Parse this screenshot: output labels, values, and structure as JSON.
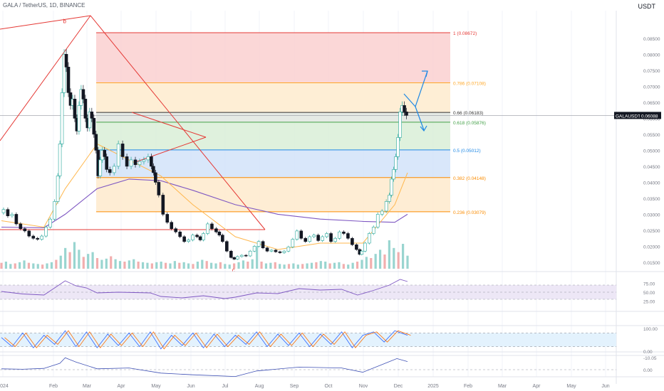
{
  "header": {
    "symbol_line": "GALA / TetherUS, 1D, BINANCE",
    "currency": "USDT"
  },
  "colors": {
    "bg": "#ffffff",
    "up": "#26a69a",
    "down": "#131722",
    "grid": "#f0f3fa",
    "pattern_line": "#e53935",
    "ma_purple": "#7e57c2",
    "ma_orange": "#ffb74d",
    "ma_yellow": "#fdd835",
    "arrow": "#1e88e5",
    "rsi_band": "#ede7f6",
    "stoch_band": "#e3f2fd"
  },
  "chart_data": {
    "type": "candlestick",
    "title": "GALA / TetherUS, 1D, BINANCE",
    "ylim": [
      0.013,
      0.0925
    ],
    "x_ticks": [
      "2024",
      "Feb",
      "Mar",
      "Apr",
      "May",
      "Jun",
      "Jul",
      "Aug",
      "Sep",
      "Oct",
      "Nov",
      "Dec",
      "2025",
      "Feb",
      "Mar",
      "Apr",
      "May",
      "Jun"
    ],
    "y_ticks": [
      "0.08500",
      "0.08000",
      "0.07500",
      "0.07000",
      "0.06500",
      "0.06000",
      "0.05500",
      "0.05000",
      "0.04500",
      "0.04000",
      "0.03500",
      "0.03000",
      "0.02500",
      "0.02000",
      "0.01500"
    ],
    "last_price": {
      "symbol": "GALAUSDT",
      "value": "0.06088",
      "y": 0.06088
    },
    "fib_levels": [
      {
        "label": "1 (0.08672)",
        "value": 0.08672,
        "color": "#e53935",
        "fill": "#fbd3d3"
      },
      {
        "label": "0.786 (0.07108)",
        "value": 0.07108,
        "color": "#ffa726",
        "fill": "#feecd0"
      },
      {
        "label": "0.66 (0.06183)",
        "value": 0.06183,
        "color": "#333333",
        "fill": "#e2e8e2"
      },
      {
        "label": "0.618 (0.05876)",
        "value": 0.05876,
        "color": "#43a047",
        "fill": "#dcefd9"
      },
      {
        "label": "0.5 (0.05012)",
        "value": 0.05012,
        "color": "#1e88e5",
        "fill": "#d5e4fa"
      },
      {
        "label": "0.382 (0.04148)",
        "value": 0.04148,
        "color": "#fb8c00",
        "fill": "#feebcf"
      },
      {
        "label": "0.236 (0.03079)",
        "value": 0.03079,
        "color": "#fb8c00",
        "fill": "#ffffff"
      }
    ],
    "pattern_labels": [
      {
        "text": "b",
        "x": 60,
        "y": 0.0893
      },
      {
        "text": "c",
        "x": 219,
        "y": 0.0138
      }
    ],
    "price_path": [
      [
        0,
        0.0305
      ],
      [
        4,
        0.0315
      ],
      [
        8,
        0.0295
      ],
      [
        12,
        0.03
      ],
      [
        16,
        0.027
      ],
      [
        20,
        0.0255
      ],
      [
        24,
        0.0248
      ],
      [
        28,
        0.0232
      ],
      [
        32,
        0.0225
      ],
      [
        36,
        0.0222
      ],
      [
        40,
        0.0232
      ],
      [
        44,
        0.026
      ],
      [
        48,
        0.0285
      ],
      [
        52,
        0.034
      ],
      [
        54,
        0.042
      ],
      [
        56,
        0.052
      ],
      [
        58,
        0.068
      ],
      [
        60,
        0.08
      ],
      [
        62,
        0.076
      ],
      [
        64,
        0.068
      ],
      [
        66,
        0.064
      ],
      [
        68,
        0.066
      ],
      [
        70,
        0.06
      ],
      [
        72,
        0.056
      ],
      [
        74,
        0.064
      ],
      [
        76,
        0.069
      ],
      [
        78,
        0.066
      ],
      [
        80,
        0.06
      ],
      [
        82,
        0.057
      ],
      [
        84,
        0.062
      ],
      [
        86,
        0.06
      ],
      [
        88,
        0.055
      ],
      [
        90,
        0.05
      ],
      [
        92,
        0.042
      ],
      [
        94,
        0.047
      ],
      [
        96,
        0.05
      ],
      [
        98,
        0.048
      ],
      [
        100,
        0.044
      ],
      [
        104,
        0.043
      ],
      [
        108,
        0.045
      ],
      [
        112,
        0.052
      ],
      [
        116,
        0.048
      ],
      [
        120,
        0.045
      ],
      [
        124,
        0.047
      ],
      [
        128,
        0.0455
      ],
      [
        132,
        0.0465
      ],
      [
        136,
        0.047
      ],
      [
        140,
        0.048
      ],
      [
        142,
        0.045
      ],
      [
        144,
        0.043
      ],
      [
        146,
        0.04
      ],
      [
        150,
        0.036
      ],
      [
        154,
        0.03
      ],
      [
        158,
        0.0275
      ],
      [
        162,
        0.0255
      ],
      [
        166,
        0.0245
      ],
      [
        170,
        0.023
      ],
      [
        174,
        0.0215
      ],
      [
        178,
        0.022
      ],
      [
        182,
        0.0235
      ],
      [
        186,
        0.023
      ],
      [
        188,
        0.022
      ],
      [
        192,
        0.024
      ],
      [
        196,
        0.027
      ],
      [
        200,
        0.0255
      ],
      [
        204,
        0.0245
      ],
      [
        206,
        0.0235
      ],
      [
        210,
        0.0215
      ],
      [
        214,
        0.0185
      ],
      [
        218,
        0.0165
      ],
      [
        220,
        0.016
      ],
      [
        224,
        0.0168
      ],
      [
        228,
        0.0172
      ],
      [
        232,
        0.017
      ],
      [
        236,
        0.0185
      ],
      [
        240,
        0.02
      ],
      [
        244,
        0.0215
      ],
      [
        248,
        0.0195
      ],
      [
        252,
        0.0185
      ],
      [
        256,
        0.0188
      ],
      [
        260,
        0.0183
      ],
      [
        264,
        0.018
      ],
      [
        268,
        0.0185
      ],
      [
        272,
        0.0198
      ],
      [
        276,
        0.0222
      ],
      [
        280,
        0.0248
      ],
      [
        284,
        0.0225
      ],
      [
        288,
        0.0215
      ],
      [
        292,
        0.023
      ],
      [
        296,
        0.0235
      ],
      [
        300,
        0.0218
      ],
      [
        304,
        0.023
      ],
      [
        308,
        0.024
      ],
      [
        312,
        0.0215
      ],
      [
        316,
        0.0225
      ],
      [
        320,
        0.0245
      ],
      [
        324,
        0.024
      ],
      [
        328,
        0.0225
      ],
      [
        332,
        0.0205
      ],
      [
        336,
        0.019
      ],
      [
        338,
        0.0175
      ],
      [
        340,
        0.0185
      ],
      [
        344,
        0.021
      ],
      [
        348,
        0.024
      ],
      [
        352,
        0.026
      ],
      [
        356,
        0.03
      ],
      [
        360,
        0.031
      ],
      [
        364,
        0.034
      ],
      [
        366,
        0.036
      ],
      [
        368,
        0.041
      ],
      [
        370,
        0.044
      ],
      [
        372,
        0.048
      ],
      [
        374,
        0.054
      ],
      [
        376,
        0.062
      ],
      [
        378,
        0.064
      ],
      [
        380,
        0.062
      ],
      [
        382,
        0.0609
      ]
    ],
    "ma_purple": [
      [
        0,
        0.026
      ],
      [
        40,
        0.0258
      ],
      [
        60,
        0.03
      ],
      [
        90,
        0.038
      ],
      [
        120,
        0.041
      ],
      [
        150,
        0.0405
      ],
      [
        180,
        0.0375
      ],
      [
        220,
        0.033
      ],
      [
        260,
        0.03
      ],
      [
        300,
        0.0285
      ],
      [
        340,
        0.0278
      ],
      [
        370,
        0.0275
      ],
      [
        382,
        0.03
      ]
    ],
    "ma_orange": [
      [
        0,
        0.028
      ],
      [
        40,
        0.026
      ],
      [
        60,
        0.038
      ],
      [
        90,
        0.052
      ],
      [
        120,
        0.047
      ],
      [
        150,
        0.042
      ],
      [
        180,
        0.033
      ],
      [
        220,
        0.023
      ],
      [
        260,
        0.019
      ],
      [
        300,
        0.021
      ],
      [
        340,
        0.021
      ],
      [
        370,
        0.033
      ],
      [
        382,
        0.043
      ]
    ],
    "volume": [
      1,
      1.2,
      0.8,
      0.9,
      1.1,
      1.4,
      1,
      0.9,
      0.8,
      0.7,
      0.9,
      1.1,
      1.5,
      2.2,
      3.5,
      2.8,
      4.5,
      3.2,
      2,
      2.5,
      2.8,
      1.8,
      1.5,
      1.7,
      2.1,
      1.6,
      1.3,
      1.2,
      1.4,
      1.6,
      1.2,
      1.1,
      1,
      0.9,
      1.1,
      1.2,
      1,
      0.9,
      1.3,
      1,
      1.1,
      0.9,
      0.8,
      1.2,
      1.5,
      1.3,
      1,
      0.9,
      1.1,
      0.8,
      0.7,
      0.9,
      1.1,
      1.4,
      1.2,
      1.6,
      3.8,
      1.2,
      0.9,
      1,
      1.1,
      0.8,
      0.7,
      0.8,
      0.9,
      0.7,
      0.8,
      0.9,
      1,
      1.1,
      1.3,
      1.2,
      0.9,
      1,
      1.1,
      0.8,
      0.7,
      1,
      1.2,
      1.5,
      2,
      1.8,
      2.5,
      3.2,
      2.4,
      4.8,
      3.5,
      2.8,
      4.2,
      2.2
    ],
    "rsi_ticks": [
      "75.00",
      "50.00",
      "25.00"
    ],
    "stoch_ticks": [
      "100.00",
      "0.00"
    ],
    "osc3_ticks": [
      "-10.05",
      "0.00"
    ],
    "rsi": [
      [
        0,
        52
      ],
      [
        20,
        45
      ],
      [
        40,
        42
      ],
      [
        55,
        72
      ],
      [
        60,
        82
      ],
      [
        70,
        68
      ],
      [
        80,
        62
      ],
      [
        90,
        48
      ],
      [
        110,
        50
      ],
      [
        140,
        48
      ],
      [
        150,
        38
      ],
      [
        170,
        34
      ],
      [
        190,
        40
      ],
      [
        210,
        32
      ],
      [
        220,
        36
      ],
      [
        240,
        48
      ],
      [
        260,
        46
      ],
      [
        280,
        60
      ],
      [
        300,
        56
      ],
      [
        320,
        58
      ],
      [
        335,
        42
      ],
      [
        350,
        55
      ],
      [
        365,
        70
      ],
      [
        375,
        86
      ],
      [
        382,
        80
      ]
    ],
    "stoch": [
      [
        0,
        60
      ],
      [
        10,
        20
      ],
      [
        20,
        80
      ],
      [
        30,
        15
      ],
      [
        40,
        70
      ],
      [
        50,
        30
      ],
      [
        60,
        90
      ],
      [
        70,
        20
      ],
      [
        80,
        85
      ],
      [
        90,
        15
      ],
      [
        100,
        75
      ],
      [
        110,
        25
      ],
      [
        120,
        80
      ],
      [
        130,
        20
      ],
      [
        140,
        85
      ],
      [
        150,
        10
      ],
      [
        160,
        70
      ],
      [
        170,
        25
      ],
      [
        180,
        80
      ],
      [
        190,
        15
      ],
      [
        200,
        75
      ],
      [
        210,
        20
      ],
      [
        220,
        70
      ],
      [
        230,
        30
      ],
      [
        240,
        85
      ],
      [
        250,
        20
      ],
      [
        260,
        75
      ],
      [
        270,
        25
      ],
      [
        280,
        80
      ],
      [
        290,
        20
      ],
      [
        300,
        75
      ],
      [
        310,
        30
      ],
      [
        320,
        85
      ],
      [
        330,
        15
      ],
      [
        340,
        70
      ],
      [
        350,
        85
      ],
      [
        360,
        40
      ],
      [
        370,
        90
      ],
      [
        382,
        70
      ]
    ],
    "osc3": [
      [
        0,
        0.2
      ],
      [
        20,
        0.1
      ],
      [
        40,
        0.3
      ],
      [
        55,
        1.5
      ],
      [
        60,
        2.8
      ],
      [
        70,
        1.8
      ],
      [
        90,
        0.2
      ],
      [
        120,
        0.4
      ],
      [
        150,
        -0.8
      ],
      [
        180,
        -1.2
      ],
      [
        220,
        -1.6
      ],
      [
        240,
        -0.3
      ],
      [
        280,
        0.6
      ],
      [
        320,
        0.4
      ],
      [
        340,
        -0.6
      ],
      [
        360,
        1.4
      ],
      [
        372,
        2.6
      ],
      [
        382,
        1.9
      ]
    ]
  }
}
